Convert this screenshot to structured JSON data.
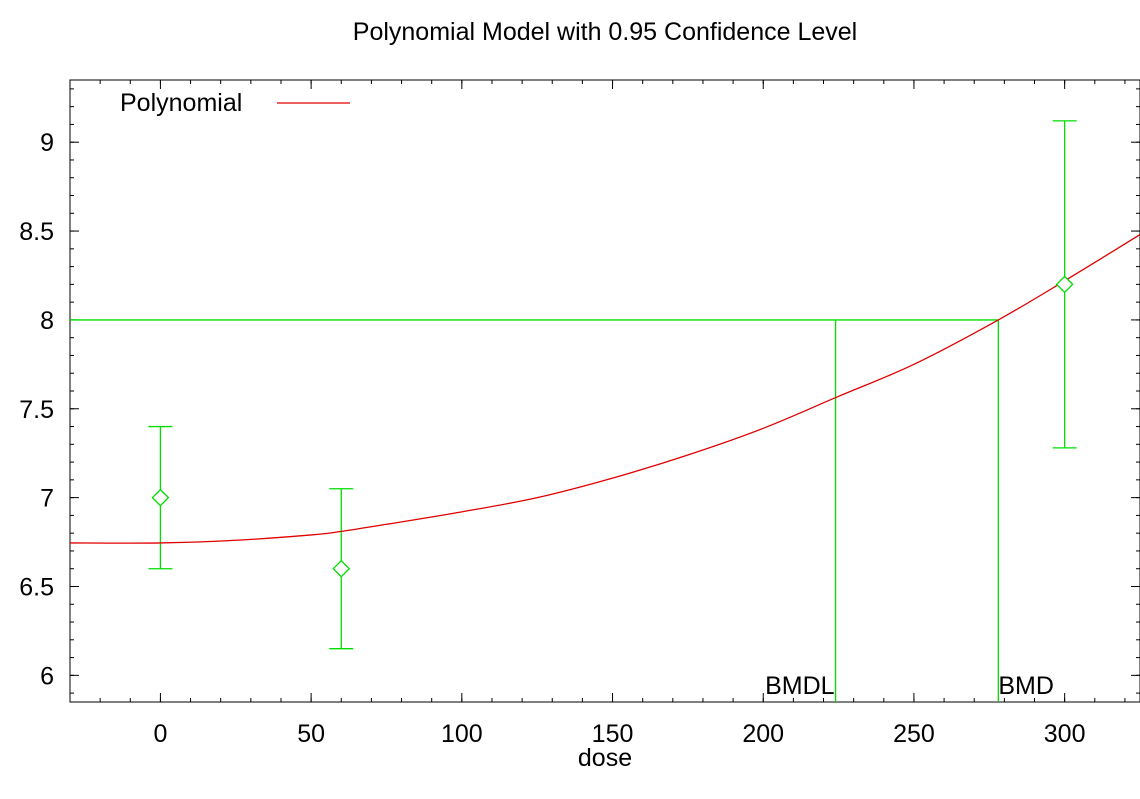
{
  "chart_data": {
    "type": "line",
    "title": "Polynomial Model with 0.95 Confidence Level",
    "xlabel": "dose",
    "ylabel": "",
    "xlim": [
      -30,
      325
    ],
    "ylim": [
      5.85,
      9.35
    ],
    "xticks": [
      0,
      50,
      100,
      150,
      200,
      250,
      300
    ],
    "yticks": [
      6,
      6.5,
      7,
      7.5,
      8,
      8.5,
      9
    ],
    "xtick_labels": [
      "0",
      "50",
      "100",
      "150",
      "200",
      "250",
      "300"
    ],
    "ytick_labels": [
      "6",
      "6.5",
      "7",
      "7.5",
      "8",
      "8.5",
      "9"
    ],
    "legend": {
      "position": "top-left",
      "entries": [
        "Polynomial"
      ]
    },
    "colors": {
      "model": "#e00000",
      "data": "#00dd00",
      "axis": "#000000"
    },
    "series": [
      {
        "name": "Polynomial",
        "kind": "model-curve",
        "x": [
          -30,
          0,
          25,
          50,
          60,
          75,
          100,
          125,
          150,
          175,
          200,
          225,
          250,
          278,
          300,
          325
        ],
        "y": [
          6.745,
          6.745,
          6.76,
          6.79,
          6.81,
          6.85,
          6.92,
          7.0,
          7.11,
          7.24,
          7.39,
          7.57,
          7.75,
          8.0,
          8.22,
          8.48
        ]
      },
      {
        "kind": "observed-means",
        "x": [
          0,
          60,
          300
        ],
        "y": [
          7.0,
          6.6,
          8.2
        ],
        "lower": [
          6.6,
          6.15,
          7.28
        ],
        "upper": [
          7.4,
          7.05,
          9.12
        ]
      }
    ],
    "bmr_level": 8.0,
    "markers": [
      {
        "label": "BMDL",
        "x": 224
      },
      {
        "label": "BMD",
        "x": 278
      }
    ],
    "grid": false
  }
}
